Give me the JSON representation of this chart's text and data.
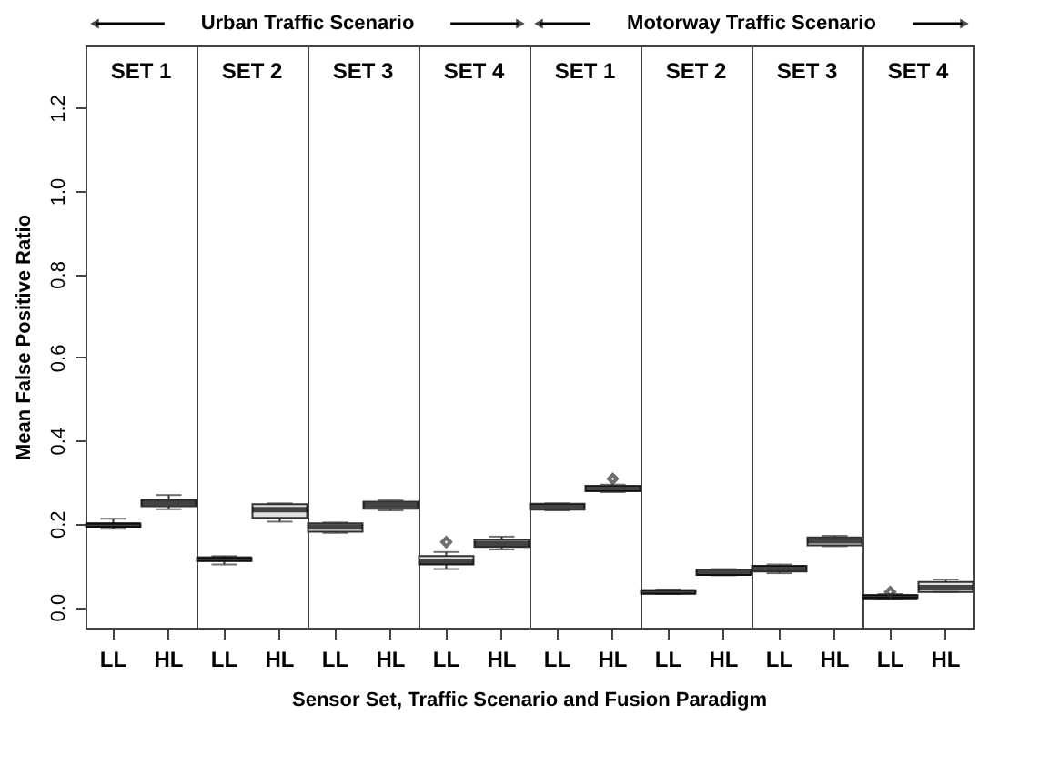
{
  "chart_data": [
    {
      "type": "box",
      "title": "SET 1",
      "ylabel": "Mean False Positive Ratio",
      "xlabel": "Sensor Set, Traffic Scenario and Fusion Paradigm",
      "annotations": [
        "Urban Traffic Scenario"
      ],
      "categories": [
        "LL",
        "HL"
      ],
      "ylim": [
        -0.05,
        1.35
      ],
      "yticks": [
        {
          "value": 0,
          "label": "0.0"
        },
        {
          "value": 0.2,
          "label": "0.2"
        },
        {
          "value": 0.4,
          "label": "0.4"
        },
        {
          "value": 0.6,
          "label": "0.6"
        },
        {
          "value": 0.8,
          "label": "0.8"
        },
        {
          "value": 1,
          "label": "1.0"
        },
        {
          "value": 1.2,
          "label": "1.2"
        }
      ],
      "boxes": [
        {
          "low": 0.188,
          "q1": 0.193,
          "median": 0.197,
          "q3": 0.2,
          "high": 0.212
        },
        {
          "low": 0.235,
          "q1": 0.242,
          "median": 0.25,
          "q3": 0.258,
          "high": 0.269
        }
      ]
    },
    {
      "type": "box",
      "title": "SET 2",
      "tick_labels": "x",
      "categories": [
        "LL",
        "HL"
      ],
      "ylim": [
        -0.05,
        1.35
      ],
      "boxes": [
        {
          "low": 0.102,
          "q1": 0.11,
          "median": 0.115,
          "q3": 0.118,
          "high": 0.122
        },
        {
          "low": 0.205,
          "q1": 0.214,
          "median": 0.234,
          "q3": 0.247,
          "high": 0.249
        }
      ]
    },
    {
      "type": "box",
      "title": "SET 3",
      "tick_labels": "x",
      "categories": [
        "LL",
        "HL"
      ],
      "ylim": [
        -0.05,
        1.35
      ],
      "boxes": [
        {
          "low": 0.178,
          "q1": 0.181,
          "median": 0.192,
          "q3": 0.201,
          "high": 0.203
        },
        {
          "low": 0.232,
          "q1": 0.236,
          "median": 0.245,
          "q3": 0.253,
          "high": 0.256
        }
      ]
    },
    {
      "type": "box",
      "title": "SET 4",
      "tick_labels": "x",
      "categories": [
        "LL",
        "HL"
      ],
      "ylim": [
        -0.05,
        1.35
      ],
      "boxes": [
        {
          "low": 0.091,
          "q1": 0.102,
          "median": 0.108,
          "q3": 0.122,
          "high": 0.132,
          "outliers": [
            0.156
          ]
        },
        {
          "low": 0.138,
          "q1": 0.144,
          "median": 0.152,
          "q3": 0.161,
          "high": 0.169
        }
      ]
    },
    {
      "type": "box",
      "title": "SET 1",
      "tick_labels": "x",
      "annotations": [
        "Motorway Traffic Scenario"
      ],
      "categories": [
        "LL",
        "HL"
      ],
      "ylim": [
        -0.05,
        1.35
      ],
      "boxes": [
        {
          "low": 0.232,
          "q1": 0.234,
          "median": 0.241,
          "q3": 0.248,
          "high": 0.249
        },
        {
          "low": 0.276,
          "q1": 0.278,
          "median": 0.284,
          "q3": 0.291,
          "high": 0.294,
          "outliers": [
            0.308
          ]
        }
      ]
    },
    {
      "type": "box",
      "title": "SET 2",
      "tick_labels": "x",
      "categories": [
        "LL",
        "HL"
      ],
      "ylim": [
        -0.05,
        1.35
      ],
      "boxes": [
        {
          "low": 0.031,
          "q1": 0.032,
          "median": 0.036,
          "q3": 0.04,
          "high": 0.042
        },
        {
          "low": 0.076,
          "q1": 0.077,
          "median": 0.081,
          "q3": 0.09,
          "high": 0.091
        }
      ]
    },
    {
      "type": "box",
      "title": "SET 3",
      "tick_labels": "x",
      "categories": [
        "LL",
        "HL"
      ],
      "ylim": [
        -0.05,
        1.35
      ],
      "boxes": [
        {
          "low": 0.081,
          "q1": 0.085,
          "median": 0.093,
          "q3": 0.099,
          "high": 0.102
        },
        {
          "low": 0.146,
          "q1": 0.148,
          "median": 0.159,
          "q3": 0.167,
          "high": 0.171
        }
      ]
    },
    {
      "type": "box",
      "title": "SET 4",
      "tick_labels": "x",
      "categories": [
        "LL",
        "HL"
      ],
      "ylim": [
        -0.05,
        1.35
      ],
      "boxes": [
        {
          "low": 0.021,
          "q1": 0.022,
          "median": 0.024,
          "q3": 0.028,
          "high": 0.031,
          "outliers": [
            0.036
          ]
        },
        {
          "low": 0.036,
          "q1": 0.036,
          "median": 0.046,
          "q3": 0.06,
          "high": 0.066
        }
      ]
    }
  ]
}
